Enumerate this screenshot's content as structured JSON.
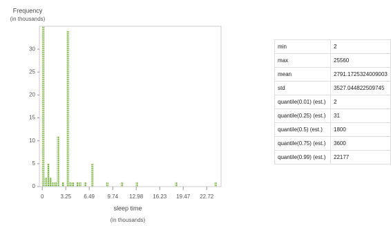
{
  "chart_data": {
    "type": "histogram",
    "y_label": "Frequency",
    "y_label_unit": "(in thousands)",
    "x_label": "sleep time",
    "x_label_unit": "(in thousands)",
    "bins": [
      0,
      0.34,
      0.68,
      1.02,
      1.36,
      1.7,
      2.04,
      2.38,
      2.72,
      3.06,
      3.4,
      3.74,
      4.08,
      4.42,
      4.76,
      5.1,
      5.44,
      5.78,
      6.12,
      6.46,
      6.8,
      7.14,
      7.48,
      7.82,
      8.16,
      8.5,
      8.84,
      9.18,
      9.52,
      9.86,
      10.2,
      10.54,
      10.88,
      11.22,
      11.56,
      11.9,
      12.24,
      12.58,
      12.92,
      13.26,
      13.6,
      13.94,
      14.28,
      14.62,
      14.96,
      15.3,
      15.64,
      15.98,
      16.32,
      16.66,
      17,
      17.34,
      17.68,
      18.02,
      18.36,
      18.7,
      19.04,
      19.38,
      19.72,
      20.06,
      20.4,
      20.74,
      21.08,
      21.42,
      21.76,
      22.1,
      22.44,
      22.78,
      23.12,
      23.46,
      23.8,
      24.14,
      24.48
    ],
    "values": [
      35,
      2,
      5,
      2,
      1,
      1,
      11,
      0,
      1,
      0,
      34,
      1,
      1,
      0,
      1,
      1,
      0,
      1,
      0,
      0,
      5,
      0,
      0,
      0,
      0,
      0,
      1,
      0,
      0,
      0,
      0,
      0,
      1,
      0,
      0,
      0,
      0,
      0,
      1,
      0,
      0,
      0,
      0,
      0,
      0,
      0,
      0,
      0,
      0,
      0,
      0,
      0,
      0,
      0,
      1,
      0,
      0,
      0,
      0,
      0,
      0,
      0,
      0,
      0,
      0,
      0,
      0,
      0,
      0,
      0,
      1,
      0
    ],
    "color": "#7cb342",
    "xlim": [
      -0.4,
      24.7
    ],
    "xticks": [
      0,
      3.25,
      6.49,
      9.74,
      12.98,
      16.23,
      19.47,
      22.72
    ],
    "ylim": [
      0,
      35
    ],
    "yticks": [
      0,
      5,
      10,
      15,
      20,
      25,
      30
    ]
  },
  "table": {
    "rows": [
      [
        "min",
        "2"
      ],
      [
        "max",
        "25560"
      ],
      [
        "mean",
        "2791.1725324009003"
      ],
      [
        "std",
        "3527.044822509745"
      ],
      [
        "quantile(0.01) (est.)",
        "2"
      ],
      [
        "quantile(0.25) (est.)",
        "31"
      ],
      [
        "quantile(0.5) (est.)",
        "1800"
      ],
      [
        "quantile(0.75) (est.)",
        "3600"
      ],
      [
        "quantile(0.99) (est.)",
        "22177"
      ]
    ]
  }
}
